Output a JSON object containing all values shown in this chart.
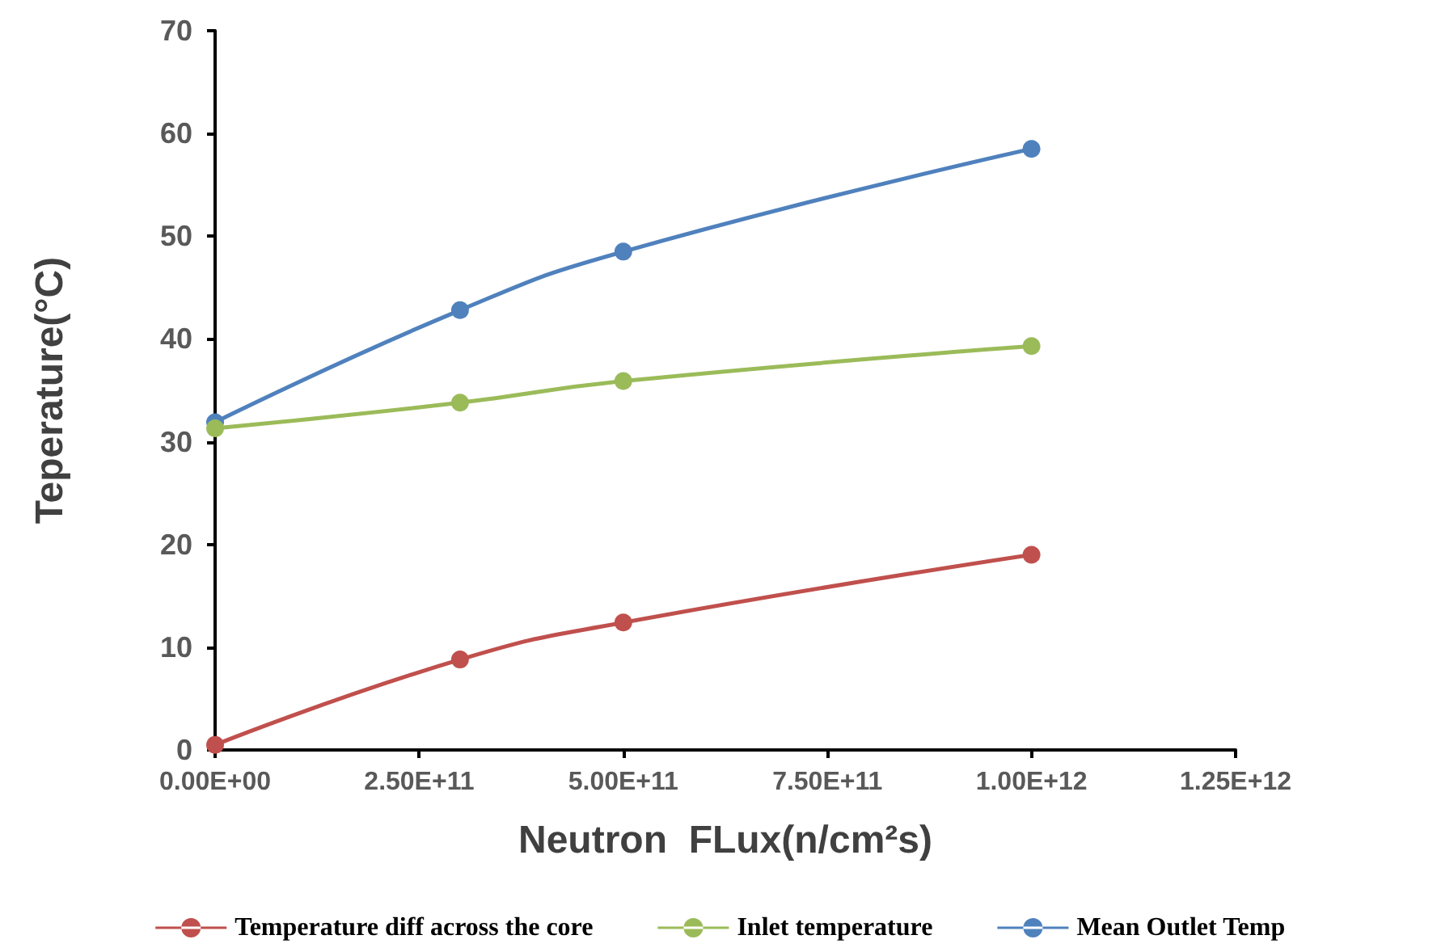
{
  "chart_data": {
    "type": "line",
    "xlabel": "Neutron  FLux(n/cm²s)",
    "ylabel": "Teperature(°C)",
    "x": [
      0,
      300000000000,
      500000000000,
      1000000000000
    ],
    "series": [
      {
        "name": "Temperature diff across the core",
        "color": "#c0504d",
        "values": [
          0.5,
          8.8,
          12.4,
          19.0
        ]
      },
      {
        "name": "Inlet temperature",
        "color": "#9bbb59",
        "values": [
          31.3,
          33.8,
          35.9,
          39.3
        ]
      },
      {
        "name": "Mean Outlet Temp",
        "color": "#4f81bd",
        "values": [
          31.9,
          42.8,
          48.5,
          58.5
        ]
      }
    ],
    "xlim": [
      0,
      1250000000000
    ],
    "xticks": [
      {
        "value": 0,
        "label": "0.00E+00"
      },
      {
        "value": 250000000000,
        "label": "2.50E+11"
      },
      {
        "value": 500000000000,
        "label": "5.00E+11"
      },
      {
        "value": 750000000000,
        "label": "7.50E+11"
      },
      {
        "value": 1000000000000,
        "label": "1.00E+12"
      },
      {
        "value": 1250000000000,
        "label": "1.25E+12"
      }
    ],
    "ylim": [
      0,
      70
    ],
    "yticks": [
      0,
      10,
      20,
      30,
      40,
      50,
      60,
      70
    ],
    "grid": false,
    "legend": "bottom",
    "marker": "circle",
    "line_style": "solid"
  }
}
